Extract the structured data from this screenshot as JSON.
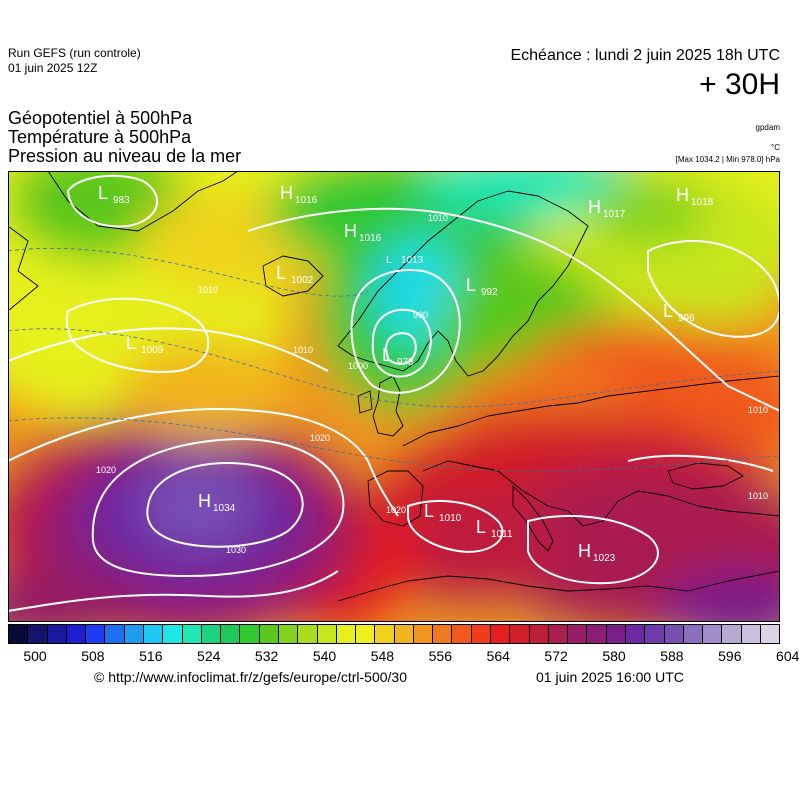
{
  "header": {
    "run_title": "Run GEFS (run controle)",
    "run_date": "01 juin 2025 12Z",
    "lead_time": "Echéance : lundi 2 juin 2025 18h UTC",
    "lead_hours": "+ 30H"
  },
  "params": [
    "Géopotentiel à 500hPa",
    "Température à 500hPa",
    "Pression au niveau de la mer"
  ],
  "units": {
    "gpdam": "gpdam",
    "temp": "°C",
    "pressure": "[Max 1034.2 | Min 978.0] hPa"
  },
  "colors": {
    "palette": [
      "#0a0a38",
      "#14146a",
      "#1a1aa0",
      "#1e1ed0",
      "#1e3cf0",
      "#1e6ef0",
      "#1e9cf0",
      "#1ec8f0",
      "#1ee6e6",
      "#1ee6b4",
      "#1ed282",
      "#1ec85a",
      "#32c832",
      "#5ac81e",
      "#82d21e",
      "#aadc1e",
      "#c8e61e",
      "#e6f01e",
      "#f0f01e",
      "#f0d21e",
      "#f0b41e",
      "#f0961e",
      "#f0781e",
      "#f05a1e",
      "#f03c1e",
      "#e61e1e",
      "#d21e28",
      "#be1e3c",
      "#aa1e50",
      "#961e64",
      "#8c1e7a",
      "#7a1e8c",
      "#6e28a0",
      "#6e3caa",
      "#7850b4",
      "#8c6ebe",
      "#a08cc8",
      "#b4aad2",
      "#c8c0dc",
      "#dcd2e6"
    ],
    "contour": "#ffffff",
    "coast": "#000000"
  },
  "colorbar": {
    "ticks": [
      "500",
      "508",
      "516",
      "524",
      "532",
      "540",
      "548",
      "556",
      "564",
      "572",
      "580",
      "588",
      "596",
      "604"
    ]
  },
  "map_labels": {
    "pressure_centres": [
      {
        "letter": "L",
        "value": "983"
      },
      {
        "letter": "H",
        "value": "1016"
      },
      {
        "letter": "H",
        "value": "1016"
      },
      {
        "letter": "L",
        "value": "1002"
      },
      {
        "letter": "L",
        "value": "1009"
      },
      {
        "letter": "L",
        "value": "1013"
      },
      {
        "letter": "L",
        "value": "992"
      },
      {
        "letter": "L",
        "value": "978"
      },
      {
        "letter": "H",
        "value": "1017"
      },
      {
        "letter": "H",
        "value": "1018"
      },
      {
        "letter": "L",
        "value": "996"
      },
      {
        "letter": "H",
        "value": "1034"
      },
      {
        "letter": "L",
        "value": "1010"
      },
      {
        "letter": "L",
        "value": "1011"
      },
      {
        "letter": "H",
        "value": "1023"
      }
    ],
    "isobar_labels": [
      "1010",
      "1020",
      "1020",
      "1030",
      "1010",
      "1000",
      "990",
      "1010",
      "1010",
      "1020",
      "1010"
    ]
  },
  "footer": {
    "source": "© http://www.infoclimat.fr/z/gefs/europe/ctrl-500/30",
    "generated": "01 juin 2025 16:00 UTC"
  }
}
